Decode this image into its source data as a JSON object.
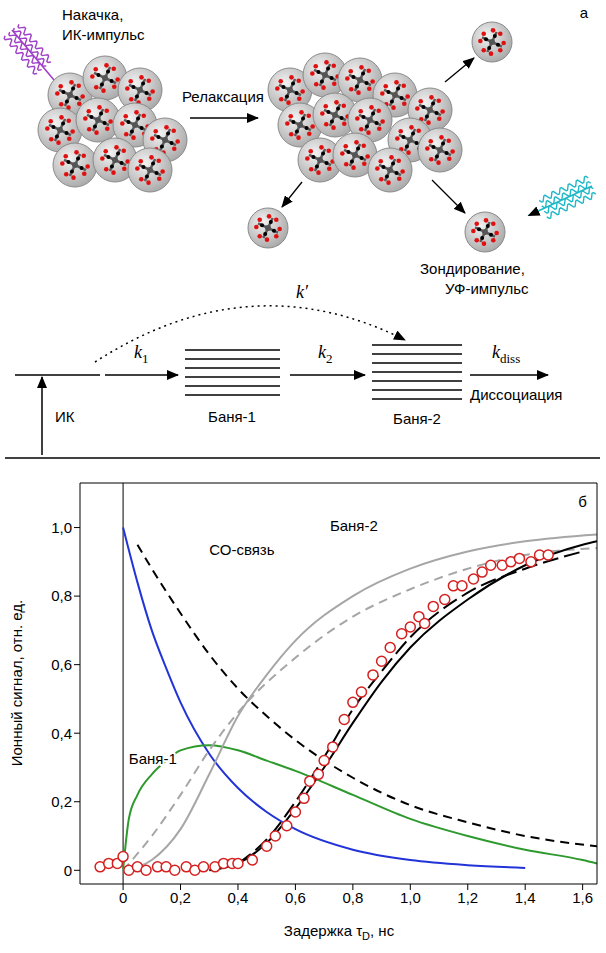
{
  "diagram": {
    "panel_label": "а",
    "pump": [
      "Накачка,",
      "ИК-импульс"
    ],
    "relaxation": "Релаксация",
    "probe": [
      "Зондирование,",
      "УФ-импульс"
    ],
    "rates": {
      "k_prime": {
        "symbol": "k′"
      },
      "k1": {
        "symbol": "k",
        "subscript": "1"
      },
      "k2": {
        "symbol": "k",
        "subscript": "2"
      },
      "k_diss": {
        "symbol": "k",
        "subscript": "diss"
      }
    },
    "levels": {
      "excitation": "ИК",
      "bath1": "Баня-1",
      "bath2": "Баня-2",
      "dissociation": "Диссоциация"
    }
  },
  "chart_data": {
    "type": "line",
    "panel_label": "б",
    "x_label": {
      "text": "Задержка τ",
      "subscript": "D",
      "suffix": ", нс"
    },
    "y_label": "Ионный сигнал, отн. ед.",
    "xlim": [
      -0.15,
      1.65
    ],
    "ylim": [
      -0.04,
      1.13
    ],
    "xticks": [
      0,
      {
        "value": 0.2,
        "label": "0,2"
      },
      {
        "value": 0.4,
        "label": "0,4"
      },
      {
        "value": 0.6,
        "label": "0,6"
      },
      {
        "value": 0.8,
        "label": "0,8"
      },
      {
        "value": 1.0,
        "label": "1,0"
      },
      {
        "value": 1.2,
        "label": "1,2"
      },
      {
        "value": 1.4,
        "label": "1,4"
      },
      {
        "value": 1.6,
        "label": "1,6"
      }
    ],
    "yticks": [
      0,
      {
        "value": 0.2,
        "label": "0,2"
      },
      {
        "value": 0.4,
        "label": "0,4"
      },
      {
        "value": 0.6,
        "label": "0,6"
      },
      {
        "value": 0.8,
        "label": "0,8"
      },
      {
        "value": 1.0,
        "label": "1,0"
      }
    ],
    "vline": 0,
    "grid": false,
    "legend": false,
    "series": [
      {
        "type": "line",
        "color": "#2233d8",
        "line_style": "solid",
        "x": [
          0,
          0.05,
          0.1,
          0.15,
          0.2,
          0.3,
          0.4,
          0.5,
          0.6,
          0.8,
          1.0,
          1.2,
          1.4
        ],
        "values": [
          1.0,
          0.84,
          0.7,
          0.59,
          0.49,
          0.34,
          0.24,
          0.17,
          0.12,
          0.06,
          0.03,
          0.015,
          0.007
        ]
      },
      {
        "type": "line",
        "name": "СО-связь",
        "color": "#000000",
        "line_style": "dashed",
        "x": [
          0.05,
          0.1,
          0.2,
          0.3,
          0.4,
          0.5,
          0.6,
          0.8,
          1.0,
          1.2,
          1.4,
          1.65
        ],
        "values": [
          0.95,
          0.88,
          0.75,
          0.63,
          0.53,
          0.45,
          0.38,
          0.27,
          0.19,
          0.14,
          0.1,
          0.07
        ]
      },
      {
        "type": "line",
        "name": "Баня-1",
        "color": "#2e9a2e",
        "line_style": "solid",
        "x": [
          0,
          0.02,
          0.05,
          0.1,
          0.15,
          0.2,
          0.3,
          0.4,
          0.5,
          0.6,
          0.8,
          1.0,
          1.2,
          1.4,
          1.6,
          1.65
        ],
        "values": [
          0,
          0.15,
          0.22,
          0.28,
          0.32,
          0.35,
          0.365,
          0.35,
          0.32,
          0.29,
          0.22,
          0.15,
          0.1,
          0.06,
          0.03,
          0.02
        ]
      },
      {
        "type": "line",
        "name": "Баня-2",
        "color": "#a6a6a6",
        "line_style": "solid",
        "x": [
          0,
          0.1,
          0.2,
          0.3,
          0.4,
          0.5,
          0.6,
          0.8,
          1.0,
          1.2,
          1.4,
          1.65
        ],
        "values": [
          0,
          0.03,
          0.12,
          0.28,
          0.45,
          0.57,
          0.67,
          0.8,
          0.88,
          0.93,
          0.96,
          0.98
        ]
      },
      {
        "type": "line",
        "color": "#a6a6a6",
        "line_style": "dashed",
        "x": [
          0,
          0.1,
          0.2,
          0.3,
          0.4,
          0.6,
          0.8,
          1.0,
          1.2,
          1.4,
          1.65
        ],
        "values": [
          0,
          0.1,
          0.22,
          0.35,
          0.46,
          0.62,
          0.74,
          0.82,
          0.88,
          0.92,
          0.94
        ]
      },
      {
        "type": "line",
        "color": "#000000",
        "line_style": "solid",
        "x": [
          0.3,
          0.4,
          0.5,
          0.6,
          0.7,
          0.8,
          0.9,
          1.0,
          1.2,
          1.4,
          1.6,
          1.65
        ],
        "values": [
          0,
          0.02,
          0.08,
          0.18,
          0.3,
          0.43,
          0.55,
          0.65,
          0.79,
          0.89,
          0.95,
          0.96
        ]
      },
      {
        "type": "line",
        "color": "#000000",
        "line_style": "long_dashed",
        "x": [
          0.4,
          0.5,
          0.6,
          0.7,
          0.8,
          0.9,
          1.0,
          1.2,
          1.4,
          1.6
        ],
        "values": [
          0.02,
          0.09,
          0.2,
          0.33,
          0.47,
          0.58,
          0.68,
          0.81,
          0.88,
          0.93
        ]
      },
      {
        "type": "scatter",
        "color": "#d42020",
        "marker": "circle_open",
        "x": [
          -0.08,
          -0.05,
          -0.02,
          0,
          0.02,
          0.05,
          0.08,
          0.12,
          0.15,
          0.18,
          0.22,
          0.25,
          0.28,
          0.32,
          0.35,
          0.38,
          0.4,
          0.45,
          0.5,
          0.53,
          0.57,
          0.6,
          0.63,
          0.65,
          0.68,
          0.7,
          0.73,
          0.77,
          0.8,
          0.83,
          0.87,
          0.9,
          0.93,
          0.97,
          1.0,
          1.03,
          1.05,
          1.08,
          1.12,
          1.15,
          1.18,
          1.22,
          1.25,
          1.28,
          1.32,
          1.35,
          1.38,
          1.42,
          1.45,
          1.48
        ],
        "values": [
          0.01,
          0.02,
          0.02,
          0.04,
          0.0,
          0.01,
          0.0,
          0.01,
          0.01,
          0.0,
          0.01,
          0.0,
          0.01,
          0.01,
          0.02,
          0.02,
          0.02,
          0.03,
          0.07,
          0.1,
          0.13,
          0.17,
          0.21,
          0.26,
          0.28,
          0.32,
          0.36,
          0.44,
          0.49,
          0.52,
          0.57,
          0.61,
          0.65,
          0.69,
          0.71,
          0.74,
          0.72,
          0.77,
          0.79,
          0.83,
          0.83,
          0.85,
          0.87,
          0.89,
          0.89,
          0.9,
          0.91,
          0.9,
          0.92,
          0.92
        ]
      }
    ]
  }
}
